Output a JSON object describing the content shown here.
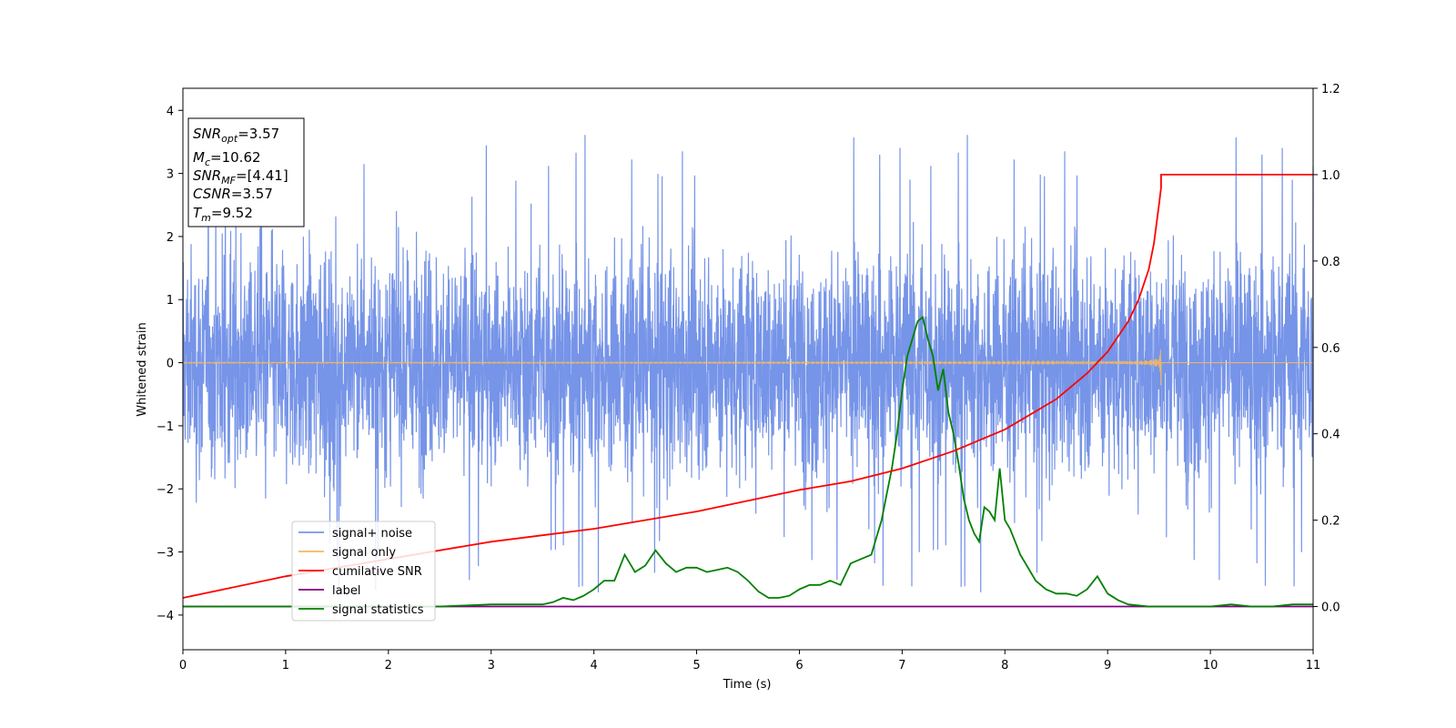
{
  "chart_data": {
    "type": "line",
    "xlabel": "Time (s)",
    "ylabel": "Whitened strain",
    "xlim": [
      0,
      11
    ],
    "ylim": [
      -4.55,
      4.35
    ],
    "y2lim": [
      -0.1,
      1.2
    ],
    "xticks": [
      "0",
      "1",
      "2",
      "3",
      "4",
      "5",
      "6",
      "7",
      "8",
      "9",
      "10",
      "11"
    ],
    "yticks": [
      "4",
      "3",
      "2",
      "1",
      "0",
      "−1",
      "−2",
      "−3",
      "−4"
    ],
    "y2ticks": [
      "1.2",
      "1.0",
      "0.8",
      "0.6",
      "0.4",
      "0.2",
      "0.0"
    ],
    "grid": false,
    "legend_position": "lower-left",
    "series": [
      {
        "name": "signal+ noise",
        "color": "#7694e8",
        "axis": "left",
        "noise_amplitude": 1.0,
        "max": 3.8,
        "min": -4.2
      },
      {
        "name": "signal only",
        "color": "#f2b860",
        "axis": "left",
        "merge_time": 9.52,
        "peak_amplitude": 0.55
      },
      {
        "name": "cumilative SNR",
        "color": "#ff0000",
        "axis": "right",
        "x": [
          0,
          1,
          2,
          3,
          4,
          5,
          6,
          6.5,
          7,
          7.5,
          8,
          8.5,
          8.8,
          9,
          9.2,
          9.3,
          9.4,
          9.45,
          9.5,
          9.52,
          9.52,
          11
        ],
        "y": [
          0.02,
          0.07,
          0.11,
          0.15,
          0.18,
          0.22,
          0.27,
          0.29,
          0.32,
          0.36,
          0.41,
          0.48,
          0.54,
          0.59,
          0.66,
          0.71,
          0.78,
          0.84,
          0.93,
          0.97,
          1.0,
          1.0
        ]
      },
      {
        "name": "label",
        "color": "#800080",
        "axis": "right",
        "x": [
          0,
          11
        ],
        "y": [
          0,
          0
        ]
      },
      {
        "name": "signal statistics",
        "color": "#008000",
        "axis": "right",
        "x": [
          0,
          0.5,
          1.0,
          1.5,
          2.0,
          2.5,
          3.0,
          3.5,
          3.6,
          3.7,
          3.8,
          3.9,
          4.0,
          4.1,
          4.2,
          4.3,
          4.4,
          4.5,
          4.6,
          4.7,
          4.8,
          4.9,
          5.0,
          5.1,
          5.2,
          5.3,
          5.4,
          5.5,
          5.6,
          5.7,
          5.8,
          5.9,
          6.0,
          6.1,
          6.2,
          6.3,
          6.4,
          6.5,
          6.6,
          6.7,
          6.75,
          6.8,
          6.85,
          6.9,
          6.95,
          7.0,
          7.05,
          7.1,
          7.15,
          7.2,
          7.25,
          7.3,
          7.35,
          7.4,
          7.45,
          7.5,
          7.55,
          7.6,
          7.65,
          7.7,
          7.75,
          7.8,
          7.85,
          7.9,
          7.95,
          8.0,
          8.05,
          8.1,
          8.15,
          8.2,
          8.3,
          8.4,
          8.5,
          8.6,
          8.7,
          8.8,
          8.9,
          9.0,
          9.1,
          9.2,
          9.4,
          9.6,
          9.8,
          10.0,
          10.2,
          10.4,
          10.6,
          10.8,
          11.0
        ],
        "y": [
          0.0,
          0.0,
          0.0,
          0.0,
          0.0,
          0.0,
          0.005,
          0.005,
          0.01,
          0.02,
          0.015,
          0.025,
          0.04,
          0.06,
          0.06,
          0.12,
          0.08,
          0.095,
          0.13,
          0.1,
          0.08,
          0.09,
          0.09,
          0.08,
          0.085,
          0.09,
          0.08,
          0.06,
          0.035,
          0.02,
          0.02,
          0.025,
          0.04,
          0.05,
          0.05,
          0.06,
          0.05,
          0.1,
          0.11,
          0.12,
          0.16,
          0.2,
          0.26,
          0.32,
          0.4,
          0.5,
          0.58,
          0.62,
          0.66,
          0.67,
          0.62,
          0.58,
          0.5,
          0.55,
          0.45,
          0.4,
          0.33,
          0.25,
          0.2,
          0.17,
          0.15,
          0.23,
          0.22,
          0.2,
          0.32,
          0.2,
          0.18,
          0.15,
          0.12,
          0.1,
          0.06,
          0.04,
          0.03,
          0.03,
          0.025,
          0.04,
          0.07,
          0.03,
          0.015,
          0.005,
          0.0,
          0.0,
          0.0,
          0.0,
          0.005,
          0.0,
          0.0,
          0.005,
          0.005
        ]
      }
    ]
  },
  "info_box": {
    "lines": [
      {
        "var": "SNR",
        "sub": "opt",
        "value": "=3.57"
      },
      {
        "var": "M",
        "sub": "c",
        "value": "=10.62"
      },
      {
        "var": "SNR",
        "sub": "MF",
        "value": "=[4.41]"
      },
      {
        "var": "CSNR",
        "sub": "",
        "value": "=3.57"
      },
      {
        "var": "T",
        "sub": "m",
        "value": "=9.52"
      }
    ]
  }
}
